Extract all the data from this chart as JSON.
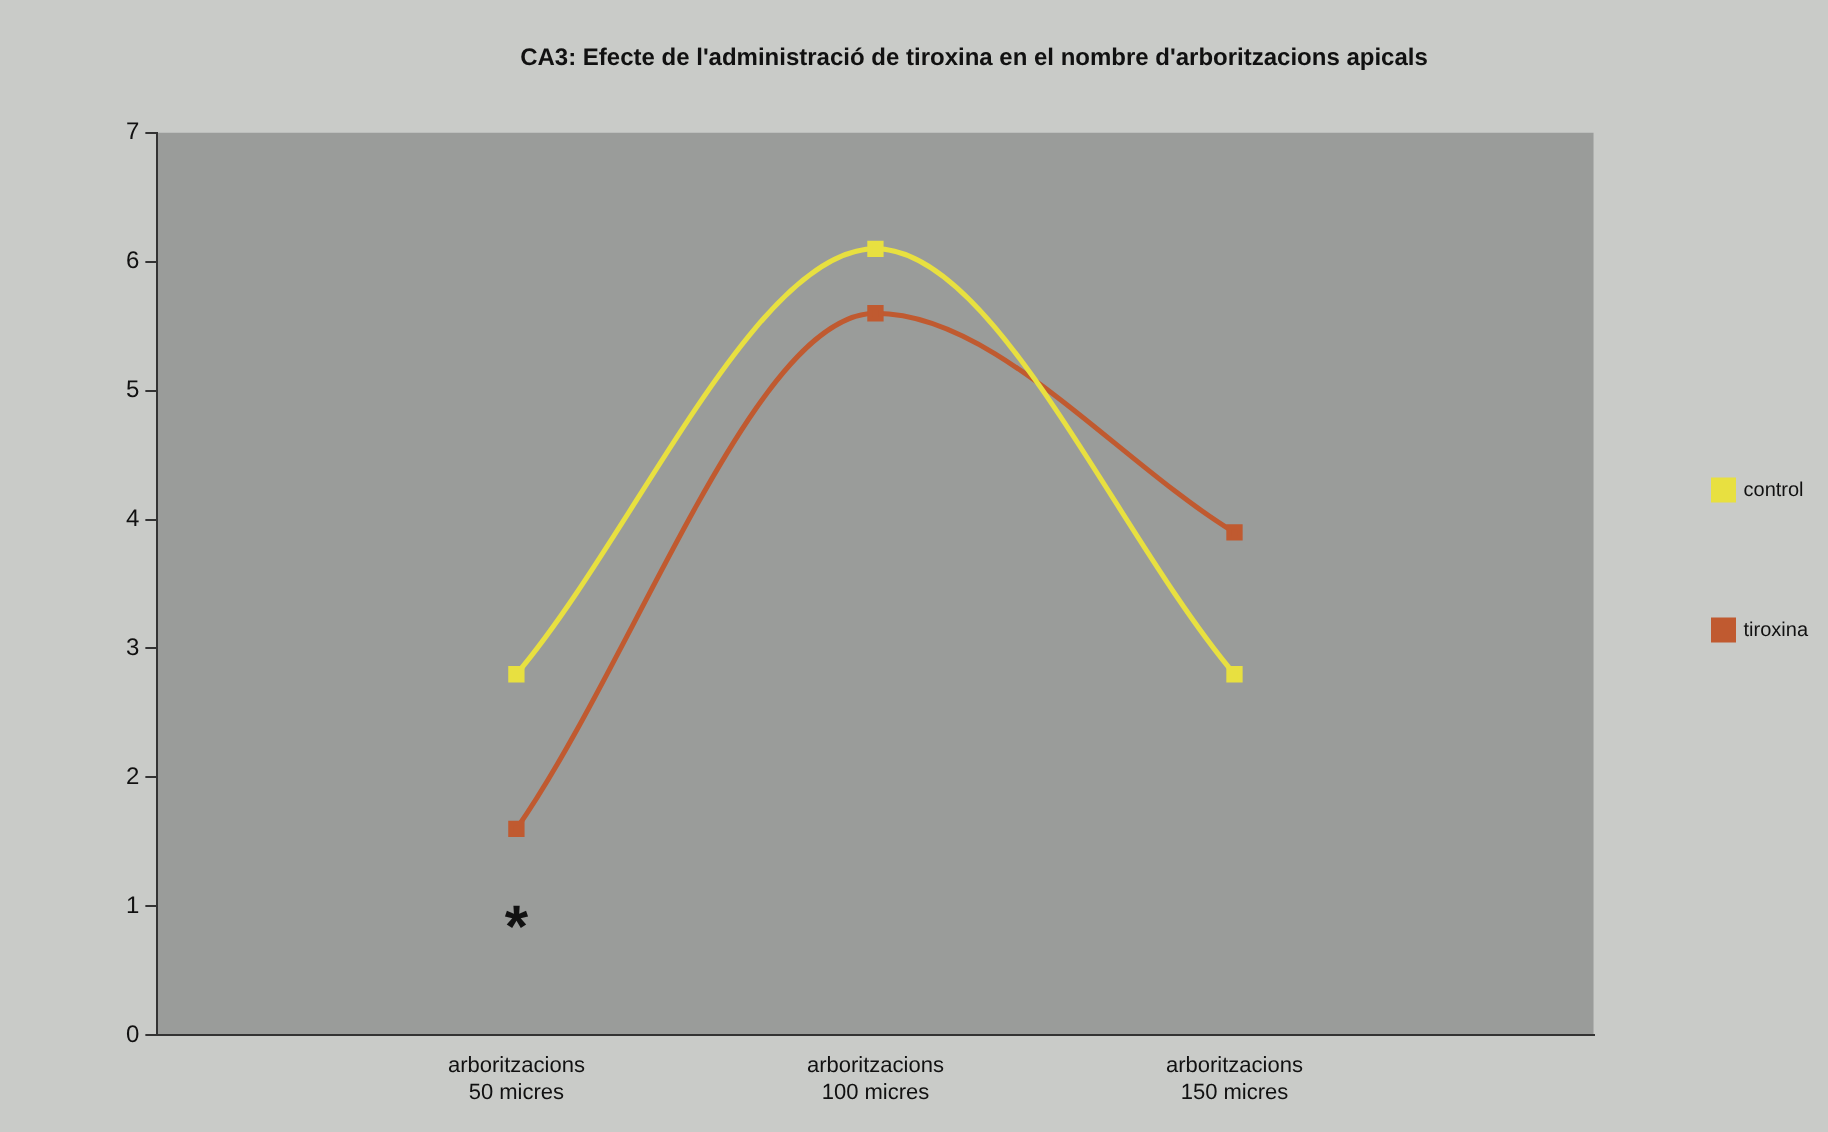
{
  "chart_data": {
    "type": "line",
    "title": "CA3: Efecte de l'administració de tiroxina en el nombre d'arboritzacions apicals",
    "categories": [
      null,
      "arboritzacions 50 micres",
      "arboritzacions 100 micres",
      "arboritzacions 150 micres",
      null
    ],
    "series": [
      {
        "name": "control",
        "color": "#e8e040",
        "values": [
          null,
          2.8,
          6.1,
          2.8,
          null
        ]
      },
      {
        "name": "tiroxina",
        "color": "#c05a30",
        "values": [
          null,
          1.6,
          5.6,
          3.9,
          null
        ]
      }
    ],
    "ylim": [
      0,
      7
    ],
    "yticks": [
      0,
      1,
      2,
      3,
      4,
      5,
      6,
      7
    ],
    "marker": "square",
    "legend": "right",
    "grid": false,
    "annotations": [
      "*"
    ]
  }
}
